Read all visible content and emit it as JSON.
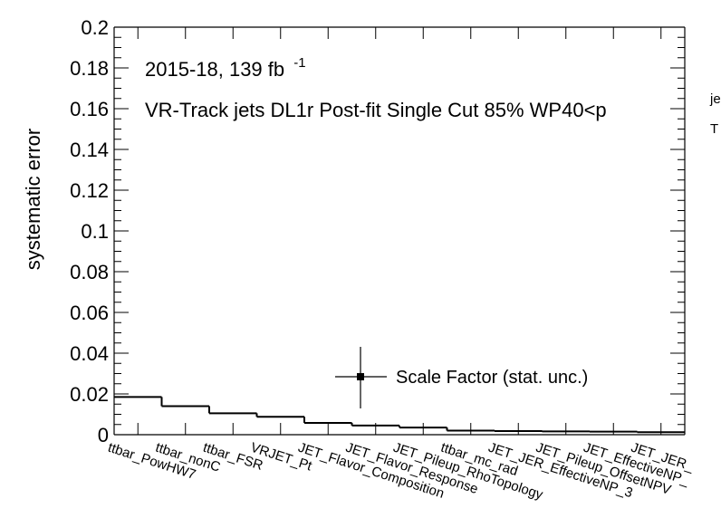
{
  "chart_data": {
    "type": "bar",
    "style": "step-histogram",
    "title": "",
    "xlabel": "",
    "ylabel": "systematic error",
    "ylim": [
      0,
      0.2
    ],
    "yticks": [
      "0",
      "0.02",
      "0.04",
      "0.06",
      "0.08",
      "0.1",
      "0.12",
      "0.14",
      "0.16",
      "0.18",
      "0.2"
    ],
    "categories": [
      "ttbar_PowHW7",
      "ttbar_nonC",
      "ttbar_FSR",
      "VRJET_Pt",
      "JET_Flavor_Composition",
      "JET_Flavor_Response",
      "JET_Pileup_RhoTopology",
      "ttbar_mc_rad",
      "JET_JER_EffectiveNP_3",
      "JET_Pileup_OffsetNPV",
      "JET_EffectiveNP_",
      "JET_JER_"
    ],
    "values": [
      0.0185,
      0.014,
      0.0105,
      0.0088,
      0.0058,
      0.0045,
      0.0035,
      0.002,
      0.0018,
      0.0016,
      0.0015,
      0.0012
    ],
    "annotations": {
      "lumi_text": "2015-18, 139 fb",
      "lumi_sup": "-1",
      "selection_text": "VR-Track jets DL1r Post-fit Single Cut 85% WP40<p",
      "clipped_sub": "je",
      "clipped_T": "T"
    },
    "legend": {
      "label": "Scale Factor (stat. unc.)",
      "marker": "square-with-error-bars",
      "placement": "lower-right"
    },
    "grid": false,
    "color": "#000000"
  }
}
